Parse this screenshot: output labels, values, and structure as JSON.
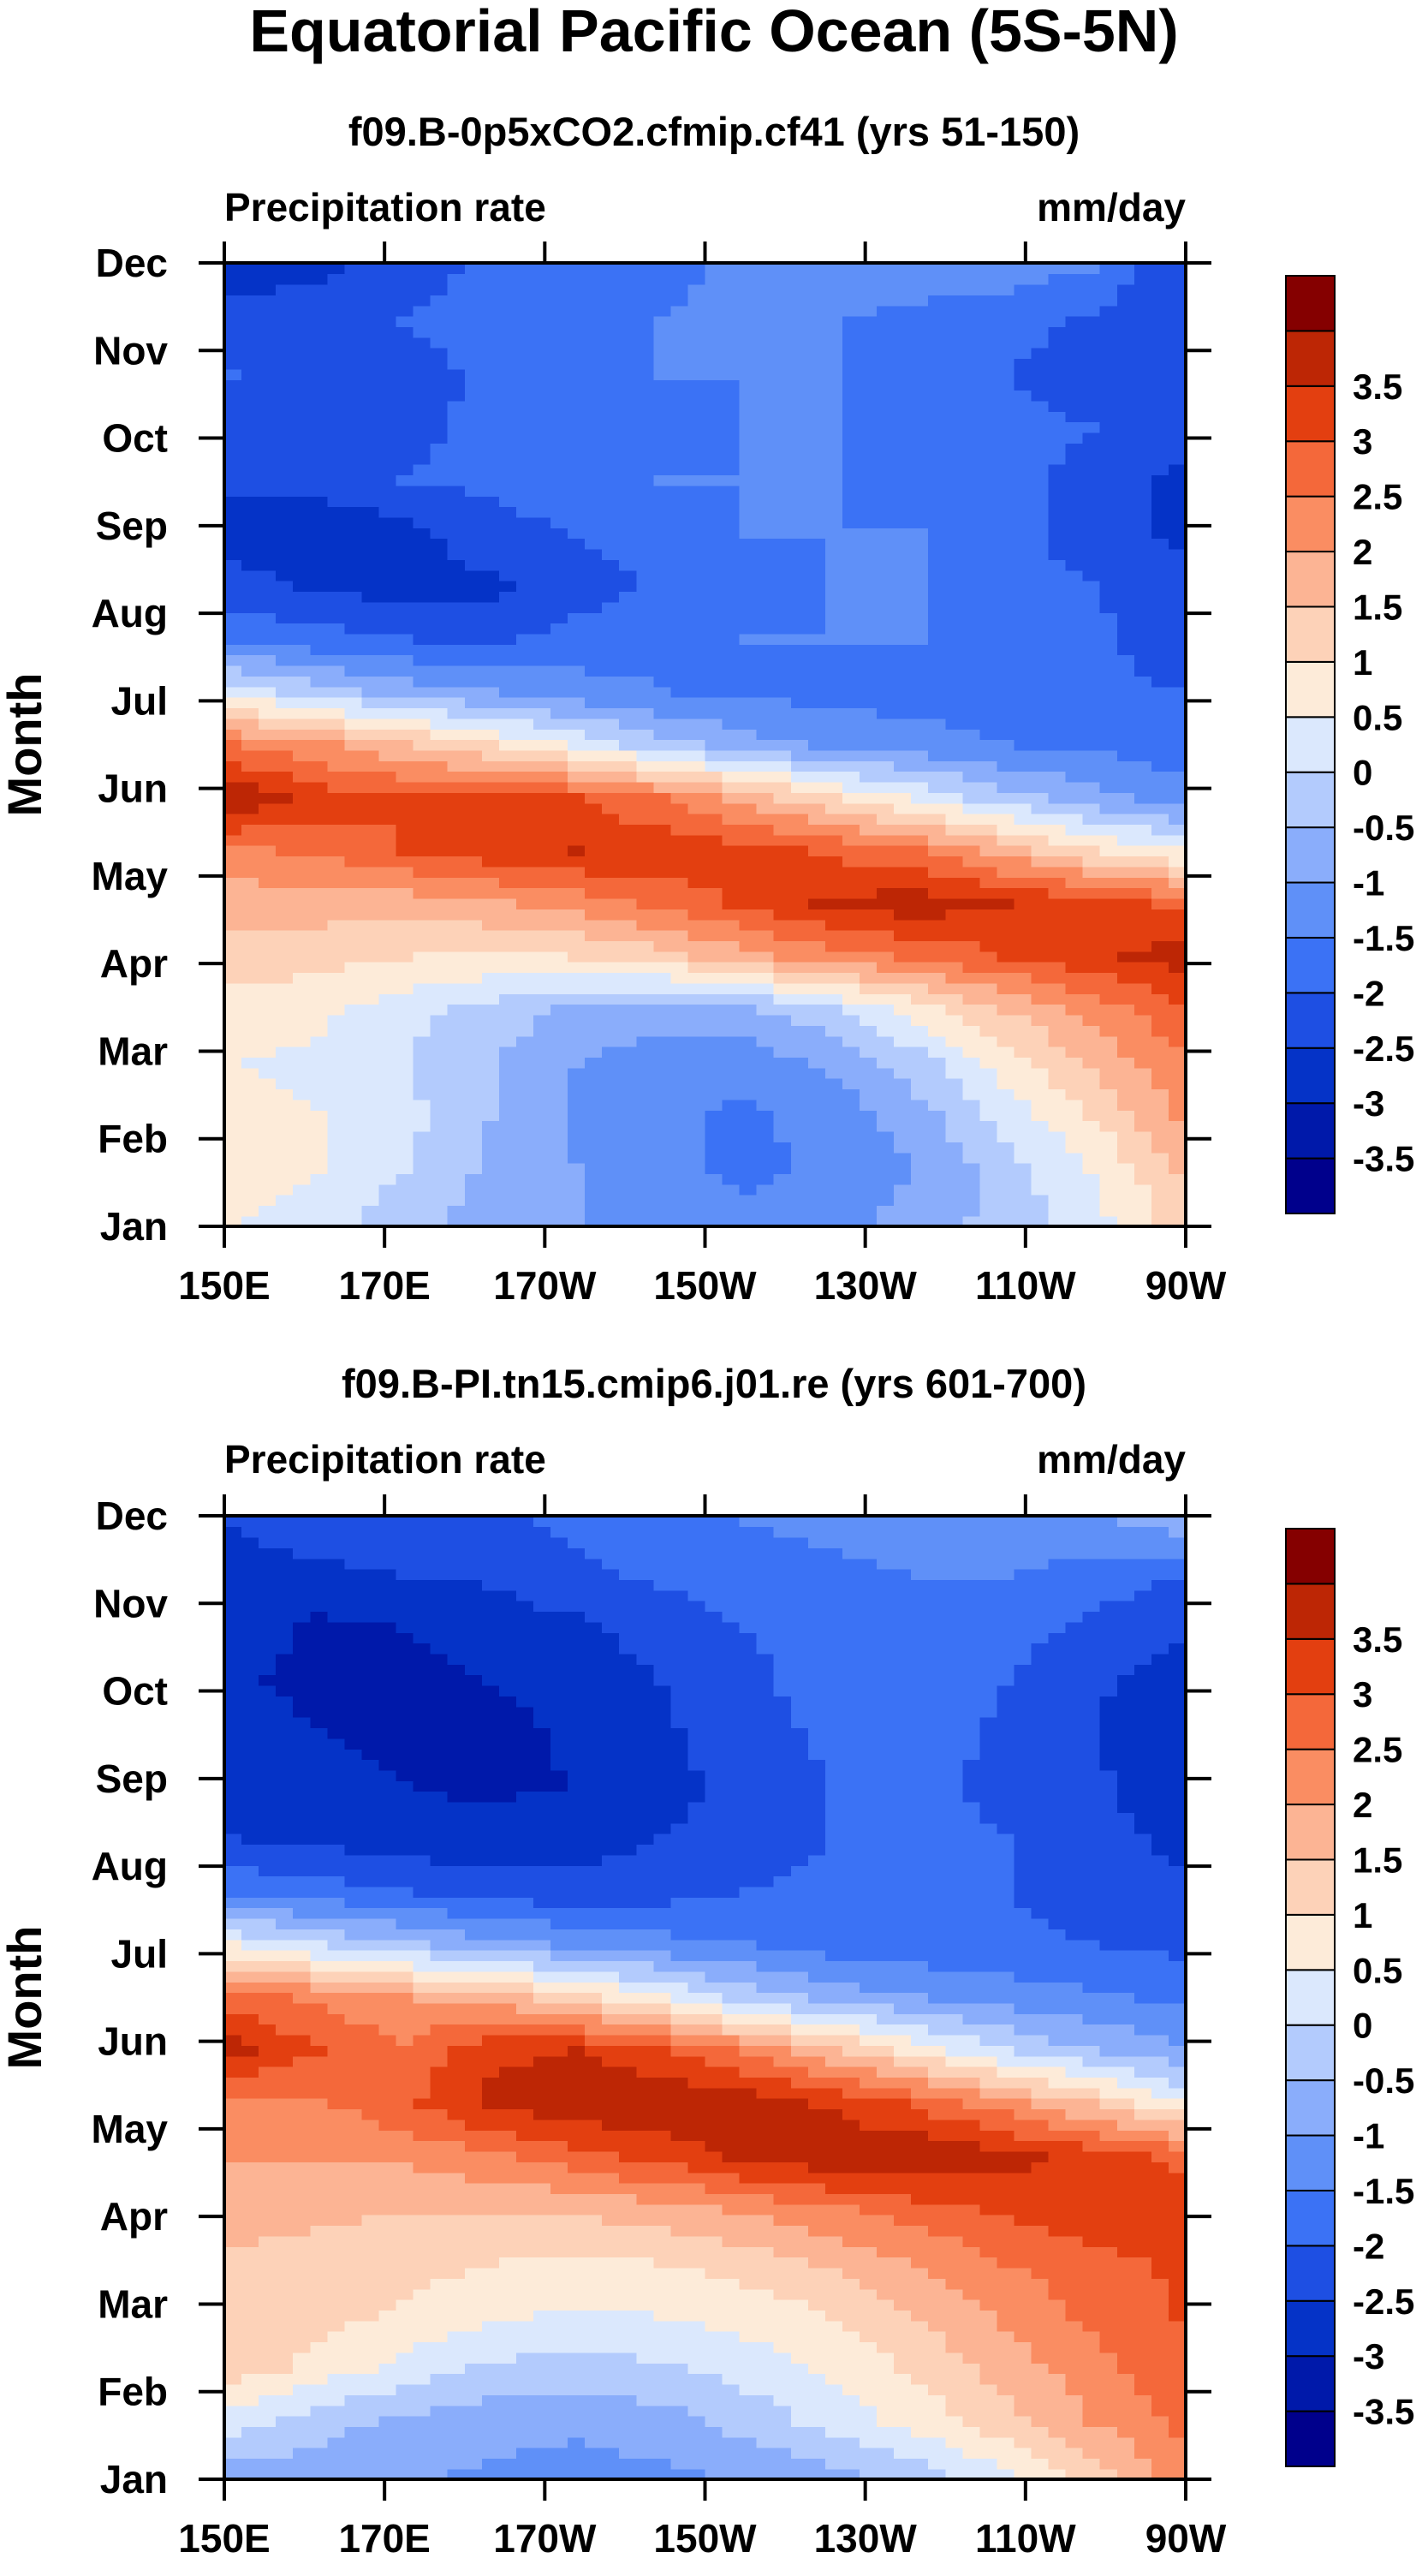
{
  "figure_title": "Equatorial Pacific Ocean (5S-5N)",
  "chart_data": [
    {
      "type": "heatmap",
      "subtitle": "f09.B-0p5xCO2.cfmip.cf41 (yrs 51-150)",
      "left_label": "Precipitation rate",
      "right_label": "mm/day",
      "ylabel": "Month",
      "x_ticks": [
        "150E",
        "170E",
        "170W",
        "150W",
        "130W",
        "110W",
        "90W"
      ],
      "x_lons": [
        150,
        170,
        190,
        210,
        230,
        250,
        270
      ],
      "y_ticks": [
        "Jan",
        "Feb",
        "Mar",
        "Apr",
        "May",
        "Jun",
        "Jul",
        "Aug",
        "Sep",
        "Oct",
        "Nov",
        "Dec"
      ],
      "levels": [
        "-3.5",
        "-3",
        "-2.5",
        "-2",
        "-1.5",
        "-1",
        "-0.5",
        "0",
        "0.5",
        "1",
        "1.5",
        "2",
        "2.5",
        "3",
        "3.5"
      ],
      "values": [
        [
          0.5,
          0.2,
          -0.3,
          -0.7,
          -1.0,
          -1.3,
          -1.4,
          -1.2,
          -0.8,
          -0.3,
          0.3,
          1.2
        ],
        [
          0.9,
          0.5,
          0.0,
          -0.6,
          -1.0,
          -1.4,
          -1.6,
          -1.4,
          -1.0,
          -0.2,
          0.5,
          1.5
        ],
        [
          0.6,
          0.5,
          0.2,
          -0.5,
          -1.1,
          -1.4,
          -1.6,
          -1.3,
          -0.7,
          0.2,
          1.0,
          2.0
        ],
        [
          0.5,
          0.4,
          0.0,
          -0.5,
          -1.0,
          -1.3,
          -1.3,
          -0.9,
          -0.2,
          0.7,
          1.6,
          2.4
        ],
        [
          0.7,
          0.6,
          0.2,
          -0.2,
          -0.6,
          -0.8,
          -0.6,
          -0.1,
          0.7,
          1.5,
          2.2,
          2.8
        ],
        [
          1.3,
          1.2,
          1.0,
          0.9,
          1.0,
          1.3,
          1.8,
          2.3,
          2.6,
          3.0,
          3.3,
          3.8
        ],
        [
          1.7,
          1.7,
          1.7,
          1.9,
          2.2,
          2.6,
          3.1,
          3.6,
          3.8,
          3.5,
          3.2,
          2.9
        ],
        [
          2.4,
          2.6,
          3.0,
          3.3,
          3.5,
          3.4,
          3.2,
          2.9,
          2.5,
          1.8,
          1.0,
          0.5
        ],
        [
          3.9,
          3.3,
          3.0,
          3.2,
          3.0,
          2.5,
          1.8,
          1.0,
          0.4,
          -0.3,
          -0.8,
          -1.2
        ],
        [
          2.5,
          2.1,
          1.6,
          1.0,
          0.4,
          -0.3,
          -0.8,
          -1.1,
          -1.3,
          -1.5,
          -1.6,
          -1.8
        ],
        [
          0.3,
          -0.3,
          -0.7,
          -1.0,
          -1.3,
          -1.5,
          -1.6,
          -1.7,
          -1.7,
          -1.8,
          -1.9,
          -2.0
        ],
        [
          -1.6,
          -1.8,
          -2.0,
          -2.1,
          -1.8,
          -1.6,
          -1.5,
          -1.5,
          -1.5,
          -1.6,
          -1.9,
          -2.2
        ],
        [
          -2.3,
          -2.6,
          -2.7,
          -2.6,
          -2.3,
          -1.9,
          -1.6,
          -1.5,
          -1.5,
          -1.7,
          -2.0,
          -2.3
        ],
        [
          -2.7,
          -3.0,
          -2.7,
          -2.2,
          -2.0,
          -1.7,
          -1.5,
          -1.5,
          -1.5,
          -1.8,
          -2.3,
          -2.6
        ],
        [
          -2.4,
          -2.2,
          -2.0,
          -1.9,
          -1.7,
          -1.5,
          -1.5,
          -1.5,
          -1.6,
          -1.8,
          -2.2,
          -2.6
        ],
        [
          -2.2,
          -2.4,
          -2.1,
          -1.9,
          -1.7,
          -1.6,
          -1.5,
          -1.5,
          -1.6,
          -1.8,
          -2.0,
          -2.1
        ],
        [
          -2.0,
          -2.4,
          -2.2,
          -1.9,
          -1.7,
          -1.5,
          -1.5,
          -1.5,
          -1.6,
          -2.0,
          -2.3,
          -2.5
        ],
        [
          -2.4,
          -2.3,
          -2.0,
          -1.8,
          -1.7,
          -1.5,
          -1.4,
          -1.5,
          -1.6,
          -1.8,
          -2.1,
          -2.3
        ],
        [
          -2.6,
          -2.6,
          -2.2,
          -1.9,
          -1.7,
          -1.6,
          -1.4,
          -1.3,
          -1.3,
          -1.3,
          -1.5,
          -2.5
        ]
      ]
    },
    {
      "type": "heatmap",
      "subtitle": "f09.B-PI.tn15.cmip6.j01.re (yrs 601-700)",
      "left_label": "Precipitation rate",
      "right_label": "mm/day",
      "ylabel": "Month",
      "x_ticks": [
        "150E",
        "170E",
        "170W",
        "150W",
        "130W",
        "110W",
        "90W"
      ],
      "x_lons": [
        150,
        170,
        190,
        210,
        230,
        250,
        270
      ],
      "y_ticks": [
        "Jan",
        "Feb",
        "Mar",
        "Apr",
        "May",
        "Jun",
        "Jul",
        "Aug",
        "Sep",
        "Oct",
        "Nov",
        "Dec"
      ],
      "levels": [
        "-3.5",
        "-3",
        "-2.5",
        "-2",
        "-1.5",
        "-1",
        "-0.5",
        "0",
        "0.5",
        "1",
        "1.5",
        "2",
        "2.5",
        "3",
        "3.5"
      ],
      "values": [
        [
          -0.7,
          -0.8,
          -0.9,
          -1.1,
          -1.2,
          -1.1,
          -0.9,
          -0.6,
          -0.2,
          0.4,
          1.2,
          2.2
        ],
        [
          0.2,
          -0.3,
          -0.6,
          -0.8,
          -0.9,
          -0.7,
          -0.3,
          0.2,
          0.7,
          1.3,
          2.0,
          2.6
        ],
        [
          1.3,
          0.8,
          0.3,
          -0.1,
          -0.2,
          -0.1,
          0.2,
          0.6,
          1.1,
          1.7,
          2.3,
          2.8
        ],
        [
          1.4,
          1.2,
          0.9,
          0.6,
          0.4,
          0.5,
          0.7,
          1.0,
          1.5,
          2.1,
          2.6,
          3.0
        ],
        [
          1.4,
          1.3,
          1.2,
          1.0,
          0.9,
          1.0,
          1.2,
          1.6,
          2.0,
          2.5,
          2.8,
          3.1
        ],
        [
          1.7,
          1.6,
          1.5,
          1.5,
          1.6,
          1.8,
          2.1,
          2.4,
          2.8,
          3.1,
          3.4,
          3.3
        ],
        [
          2.0,
          2.0,
          2.1,
          2.4,
          2.8,
          3.2,
          3.6,
          3.9,
          3.9,
          3.7,
          3.3,
          2.9
        ],
        [
          2.2,
          2.4,
          2.9,
          3.6,
          3.9,
          3.9,
          3.8,
          3.4,
          2.9,
          2.2,
          1.5,
          0.6
        ],
        [
          3.7,
          3.0,
          2.6,
          3.4,
          3.5,
          3.1,
          2.4,
          1.6,
          0.8,
          0.0,
          -0.5,
          -0.9
        ],
        [
          2.8,
          2.4,
          2.0,
          1.8,
          1.2,
          0.5,
          -0.2,
          -0.7,
          -1.0,
          -1.2,
          -1.4,
          -1.6
        ],
        [
          0.5,
          0.0,
          -0.4,
          -0.8,
          -1.1,
          -1.3,
          -1.5,
          -1.7,
          -1.8,
          -1.9,
          -2.0,
          -2.1
        ],
        [
          -1.6,
          -1.8,
          -2.0,
          -2.2,
          -2.3,
          -2.2,
          -2.0,
          -1.9,
          -1.9,
          -2.0,
          -2.2,
          -2.4
        ],
        [
          -2.5,
          -2.6,
          -2.8,
          -2.8,
          -2.7,
          -2.5,
          -2.2,
          -2.0,
          -1.9,
          -2.0,
          -2.3,
          -2.6
        ],
        [
          -2.6,
          -2.8,
          -3.0,
          -3.1,
          -3.0,
          -2.7,
          -2.3,
          -2.0,
          -1.9,
          -2.1,
          -2.4,
          -2.8
        ],
        [
          -2.7,
          -3.0,
          -3.1,
          -3.2,
          -2.9,
          -2.6,
          -2.2,
          -1.9,
          -1.8,
          -2.1,
          -2.5,
          -2.9
        ],
        [
          -2.9,
          -3.2,
          -3.1,
          -3.0,
          -2.8,
          -2.5,
          -2.1,
          -1.8,
          -1.7,
          -2.0,
          -2.4,
          -2.7
        ],
        [
          -2.7,
          -3.1,
          -3.0,
          -2.8,
          -2.6,
          -2.3,
          -2.0,
          -1.8,
          -1.6,
          -1.8,
          -2.1,
          -2.4
        ],
        [
          -2.6,
          -2.6,
          -2.5,
          -2.4,
          -2.1,
          -1.9,
          -1.7,
          -1.6,
          -1.5,
          -1.5,
          -1.7,
          -2.0
        ],
        [
          -2.5,
          -2.3,
          -2.2,
          -2.1,
          -1.9,
          -1.7,
          -1.5,
          -1.4,
          -1.3,
          -1.2,
          -1.1,
          -0.7
        ]
      ]
    }
  ],
  "palette": [
    "#00008c",
    "#0019aa",
    "#0533c7",
    "#1e4fe3",
    "#3b72f5",
    "#5f90f8",
    "#8aadfb",
    "#b3cbfd",
    "#dbe8fd",
    "#fdebd9",
    "#fdd2b8",
    "#fcb494",
    "#fa8d62",
    "#f4683a",
    "#e33f10",
    "#bd2605",
    "#850000"
  ]
}
